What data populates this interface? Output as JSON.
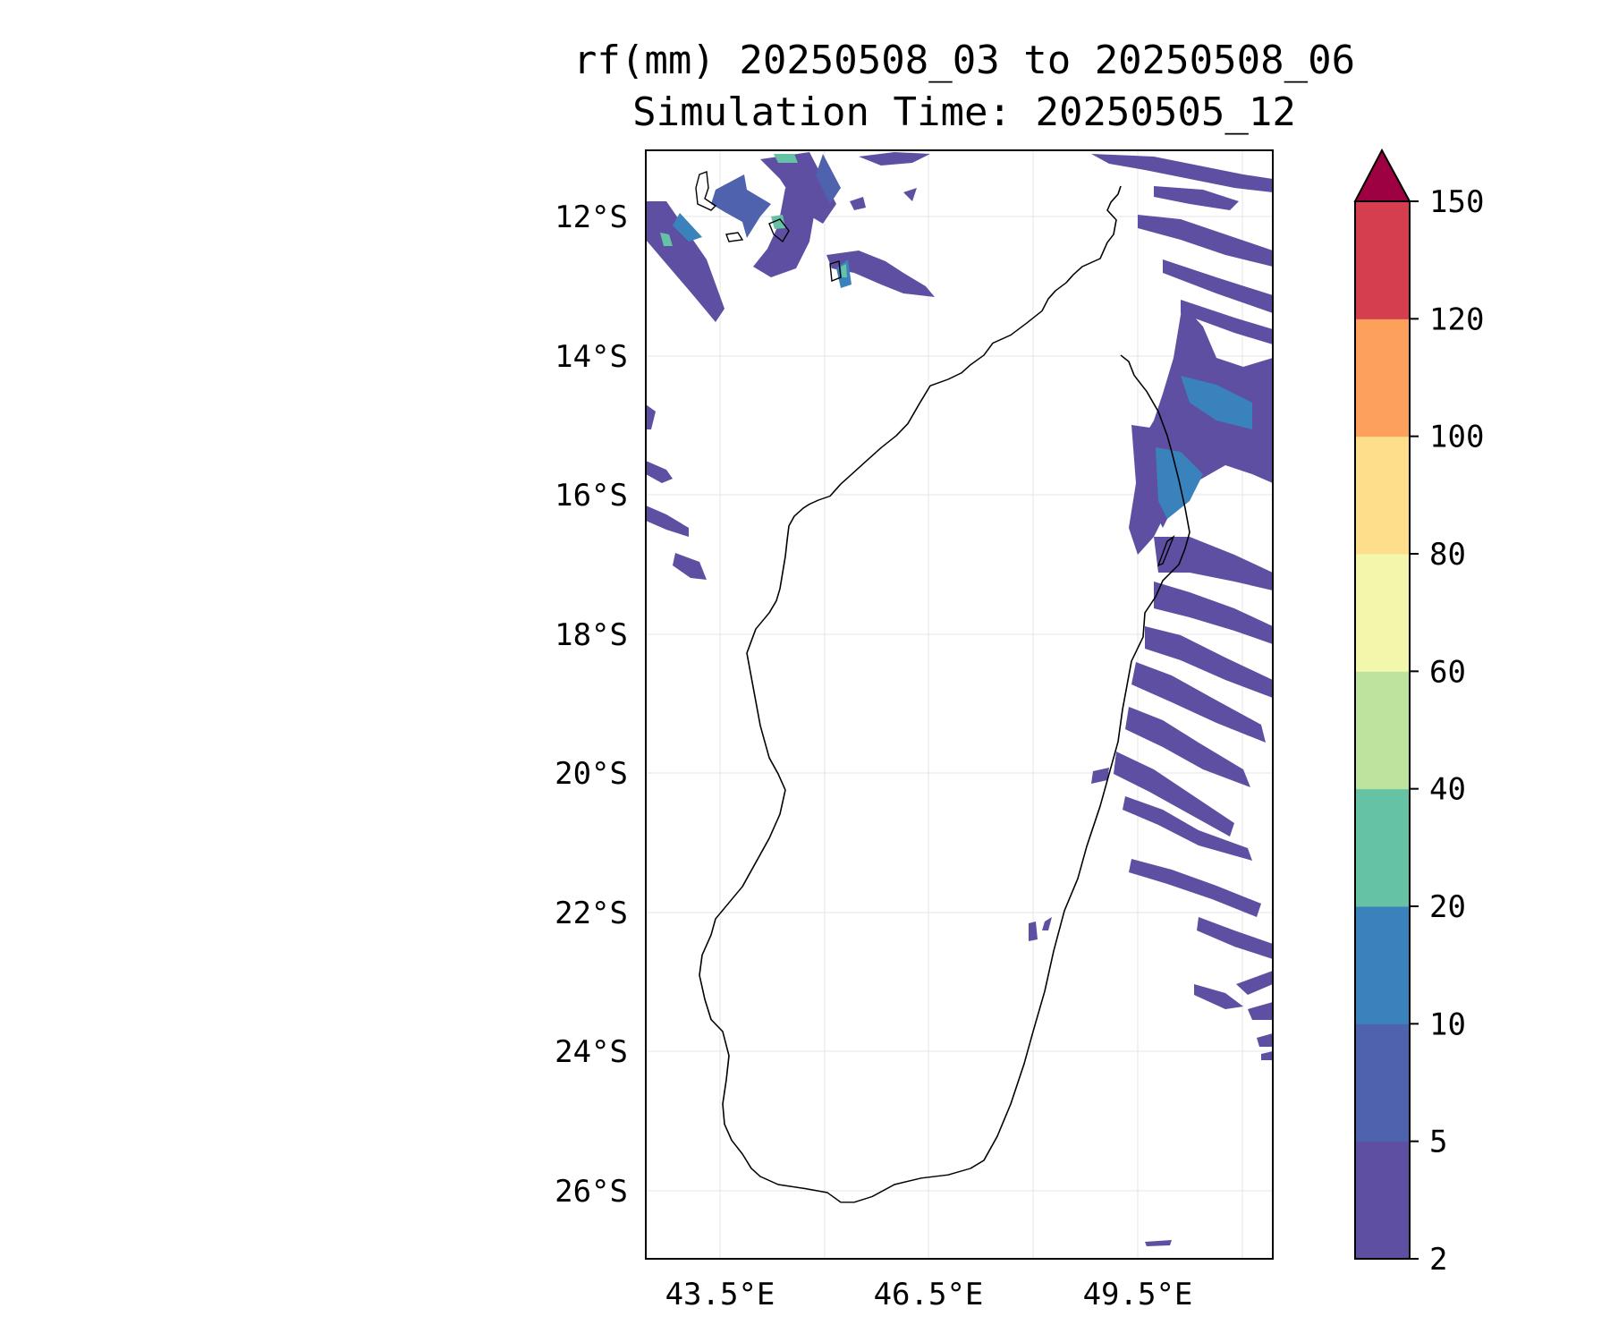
{
  "title": {
    "line1": "rf(mm) 20250508_03 to 20250508_06",
    "line2": "Simulation Time: 20250505_12"
  },
  "map": {
    "lat_ticks": [
      "12°S",
      "14°S",
      "16°S",
      "18°S",
      "20°S",
      "22°S",
      "24°S",
      "26°S"
    ],
    "lon_ticks": [
      "43.5°E",
      "46.5°E",
      "49.5°E"
    ],
    "extent": {
      "lon_min": 42.45,
      "lon_max": 51.45,
      "lat_min": -26.95,
      "lat_max": -11.05
    },
    "landmass": "Madagascar outline",
    "field": "3-hour rainfall accumulation (mm)"
  },
  "colorbar": {
    "levels": [
      "2",
      "5",
      "10",
      "20",
      "40",
      "60",
      "80",
      "100",
      "120",
      "150"
    ],
    "colors": [
      "#5e4fa2",
      "#4f62ad",
      "#3a82bb",
      "#66c2a5",
      "#bde49f",
      "#f2f7ac",
      "#fddf8b",
      "#fca05b",
      "#d53e4f",
      "#9e0142"
    ],
    "extend": "max"
  }
}
